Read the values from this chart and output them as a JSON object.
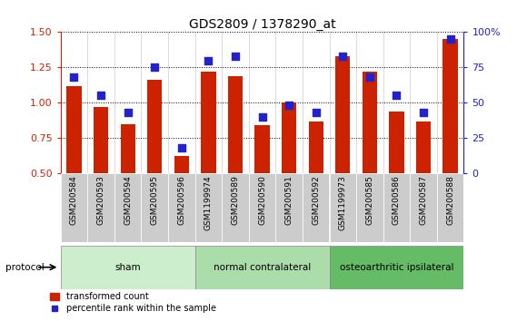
{
  "title": "GDS2809 / 1378290_at",
  "samples": [
    "GSM200584",
    "GSM200593",
    "GSM200594",
    "GSM200595",
    "GSM200596",
    "GSM1199974",
    "GSM200589",
    "GSM200590",
    "GSM200591",
    "GSM200592",
    "GSM1199973",
    "GSM200585",
    "GSM200586",
    "GSM200587",
    "GSM200588"
  ],
  "red_values": [
    1.12,
    0.97,
    0.85,
    1.16,
    0.62,
    1.22,
    1.19,
    0.84,
    1.0,
    0.87,
    1.33,
    1.22,
    0.94,
    0.87,
    1.45
  ],
  "blue_values": [
    68,
    55,
    43,
    75,
    18,
    80,
    83,
    40,
    48,
    43,
    83,
    68,
    55,
    43,
    95
  ],
  "ylim_left": [
    0.5,
    1.5
  ],
  "ylim_right": [
    0,
    100
  ],
  "yticks_left": [
    0.5,
    0.75,
    1.0,
    1.25,
    1.5
  ],
  "yticks_right": [
    0,
    25,
    50,
    75,
    100
  ],
  "groups": [
    {
      "label": "sham",
      "start": 0,
      "end": 5,
      "color": "#cceecc"
    },
    {
      "label": "normal contralateral",
      "start": 5,
      "end": 10,
      "color": "#aaddaa"
    },
    {
      "label": "osteoarthritic ipsilateral",
      "start": 10,
      "end": 15,
      "color": "#66bb66"
    }
  ],
  "bar_color": "#cc2200",
  "dot_color": "#2222cc",
  "bar_width": 0.55,
  "dot_size": 30,
  "background_color": "#ffffff",
  "plot_bg_color": "#ffffff",
  "xtick_bg_color": "#cccccc",
  "grid_color": "#000000",
  "legend_items": [
    "transformed count",
    "percentile rank within the sample"
  ],
  "protocol_label": "protocol",
  "tick_label_color_left": "#cc2200",
  "tick_label_color_right": "#2222cc",
  "ytick_labels_right": [
    "0",
    "25",
    "50",
    "75",
    "100%"
  ]
}
